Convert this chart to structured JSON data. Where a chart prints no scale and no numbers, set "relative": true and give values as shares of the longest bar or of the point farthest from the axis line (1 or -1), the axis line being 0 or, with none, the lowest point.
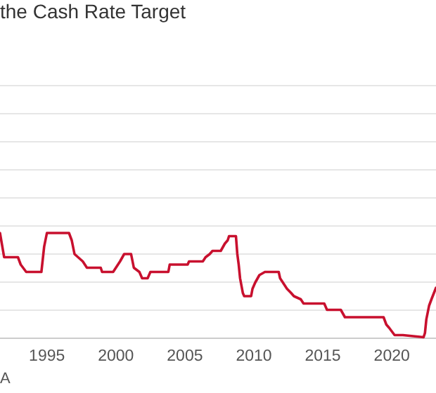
{
  "chart_data": {
    "type": "line",
    "title": "the Cash Rate Target",
    "annotations": [
      "A"
    ],
    "relative": true,
    "grid": "y",
    "xlim": [
      1991.6,
      2023.2
    ],
    "xticks": [
      1995,
      2000,
      2005,
      2010,
      2015,
      2020
    ],
    "series": [
      {
        "color": "#c8102e",
        "x": [
          1991.6,
          1991.9,
          1992.9,
          1993.1,
          1993.5,
          1994.6,
          1994.8,
          1995.0,
          1996.6,
          1996.8,
          1997.0,
          1997.6,
          1997.9,
          1998.9,
          1999.0,
          1999.8,
          2000.0,
          2000.3,
          2000.6,
          2001.1,
          2001.3,
          2001.7,
          2001.9,
          2002.3,
          2002.5,
          2003.8,
          2003.9,
          2005.2,
          2005.3,
          2006.3,
          2006.5,
          2006.8,
          2007.0,
          2007.6,
          2007.9,
          2008.1,
          2008.2,
          2008.7,
          2008.8,
          2008.9,
          2009.0,
          2009.2,
          2009.3,
          2009.8,
          2009.9,
          2010.1,
          2010.4,
          2010.8,
          2011.8,
          2011.9,
          2012.4,
          2012.7,
          2012.9,
          2013.4,
          2013.6,
          2015.1,
          2015.3,
          2016.3,
          2016.6,
          2019.4,
          2019.6,
          2019.8,
          2020.2,
          2020.8,
          2022.3,
          2022.4,
          2022.5,
          2022.7,
          2022.9,
          2023.2
        ],
        "values": [
          1,
          0.77,
          0.77,
          0.7,
          0.63,
          0.63,
          0.87,
          1,
          1,
          0.93,
          0.8,
          0.73,
          0.67,
          0.67,
          0.63,
          0.63,
          0.67,
          0.73,
          0.8,
          0.8,
          0.67,
          0.63,
          0.57,
          0.57,
          0.63,
          0.63,
          0.7,
          0.7,
          0.73,
          0.73,
          0.77,
          0.8,
          0.83,
          0.83,
          0.9,
          0.93,
          0.97,
          0.97,
          0.8,
          0.7,
          0.57,
          0.43,
          0.4,
          0.4,
          0.47,
          0.53,
          0.6,
          0.63,
          0.63,
          0.57,
          0.47,
          0.43,
          0.4,
          0.37,
          0.33,
          0.33,
          0.27,
          0.27,
          0.2,
          0.2,
          0.13,
          0.1,
          0.03,
          0.03,
          0.01,
          0.05,
          0.18,
          0.31,
          0.38,
          0.48
        ]
      }
    ]
  }
}
